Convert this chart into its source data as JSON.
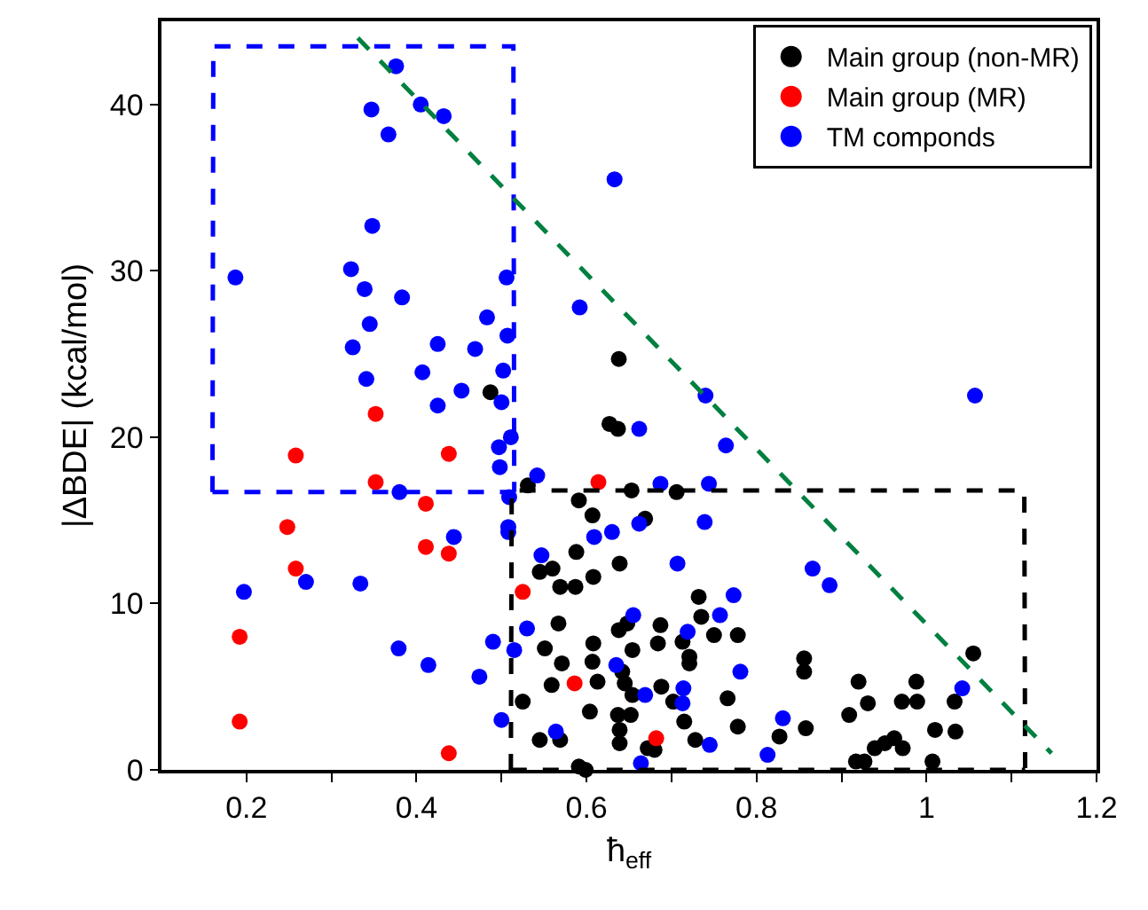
{
  "chart_data": {
    "type": "scatter",
    "xlabel": "ħ$_{eff}$",
    "ylabel": "|ΔBDE| (kcal/mol)",
    "xlim": [
      0.1,
      1.2
    ],
    "ylim": [
      0,
      45
    ],
    "xticks": [
      0.2,
      {
        "value": 0.3,
        "label": null
      },
      0.4,
      {
        "value": 0.5,
        "label": null
      },
      0.6,
      {
        "value": 0.7,
        "label": null
      },
      0.8,
      {
        "value": 0.9,
        "label": null
      },
      1,
      {
        "value": 1.1,
        "label": null
      },
      1.2
    ],
    "yticks": [
      0,
      10,
      20,
      30,
      40
    ],
    "grid": false,
    "legend": "top right",
    "marker": "circle",
    "series": [
      {
        "name": "Main group (non-MR)",
        "color": "#000000",
        "x": [
          0.487,
          0.638,
          0.627,
          0.637,
          0.531,
          0.653,
          0.591,
          0.607,
          0.669,
          0.588,
          0.639,
          0.545,
          0.56,
          0.608,
          0.569,
          0.587,
          0.567,
          0.638,
          0.648,
          0.654,
          0.551,
          0.608,
          0.571,
          0.607,
          0.642,
          0.559,
          0.613,
          0.645,
          0.654,
          0.525,
          0.604,
          0.637,
          0.652,
          0.639,
          0.639,
          0.545,
          0.569,
          0.672,
          0.591,
          0.706,
          0.732,
          0.735,
          0.687,
          0.684,
          0.713,
          0.75,
          0.778,
          0.721,
          0.721,
          0.856,
          0.856,
          1.055,
          0.688,
          0.702,
          0.766,
          0.92,
          0.931,
          0.988,
          0.971,
          0.989,
          1.033,
          0.715,
          0.778,
          0.858,
          0.909,
          1.01,
          1.034,
          0.728,
          0.827,
          0.68,
          0.939,
          0.951,
          0.962,
          0.972,
          0.917,
          1.007,
          0.599,
          0.927
        ],
        "values": [
          22.7,
          24.7,
          20.8,
          20.5,
          17.1,
          16.8,
          16.2,
          15.3,
          15.1,
          13.1,
          12.4,
          11.9,
          12.1,
          11.6,
          11.0,
          11.0,
          8.8,
          8.4,
          8.8,
          7.2,
          7.3,
          7.6,
          6.4,
          6.5,
          5.9,
          5.1,
          5.3,
          5.2,
          4.5,
          4.1,
          3.5,
          3.3,
          3.3,
          2.4,
          1.6,
          1.8,
          1.8,
          1.3,
          0.2,
          16.7,
          10.4,
          9.2,
          8.7,
          7.6,
          7.7,
          8.1,
          8.1,
          6.8,
          6.4,
          6.7,
          5.9,
          7.0,
          5.0,
          4.1,
          4.3,
          5.3,
          4.0,
          5.3,
          4.1,
          4.1,
          4.1,
          2.9,
          2.6,
          2.5,
          3.3,
          2.4,
          2.3,
          1.8,
          2.0,
          1.2,
          1.3,
          1.6,
          1.9,
          1.3,
          0.5,
          0.5,
          0.0,
          0.5
        ]
      },
      {
        "name": "Main group (MR)",
        "color": "#ff0000",
        "x": [
          0.352,
          0.258,
          0.438,
          0.352,
          0.614,
          0.411,
          0.248,
          0.411,
          0.438,
          0.258,
          0.525,
          0.192,
          0.586,
          0.192,
          0.438,
          0.682
        ],
        "values": [
          21.4,
          18.9,
          19.0,
          17.3,
          17.3,
          16.0,
          14.6,
          13.4,
          13.0,
          12.1,
          10.7,
          8.0,
          5.2,
          2.9,
          1.0,
          1.9
        ]
      },
      {
        "name": "TM componds",
        "color": "#0000ff",
        "x": [
          0.376,
          0.347,
          0.405,
          0.432,
          0.367,
          0.633,
          0.348,
          0.187,
          0.323,
          0.339,
          0.383,
          0.506,
          0.592,
          0.483,
          0.345,
          0.507,
          0.325,
          0.425,
          0.469,
          0.502,
          0.341,
          0.407,
          0.453,
          0.425,
          0.5,
          0.511,
          0.497,
          0.498,
          0.542,
          0.38,
          0.509,
          0.662,
          0.508,
          0.508,
          0.444,
          0.609,
          0.63,
          0.662,
          0.547,
          0.197,
          0.27,
          0.334,
          0.53,
          0.655,
          0.379,
          0.49,
          0.515,
          0.414,
          0.474,
          0.635,
          0.669,
          0.5,
          0.564,
          0.664,
          1.057,
          0.74,
          0.764,
          0.687,
          0.744,
          0.739,
          0.707,
          0.866,
          0.886,
          0.773,
          0.757,
          0.719,
          0.781,
          0.714,
          0.713,
          1.042,
          0.831,
          0.745,
          0.813
        ],
        "values": [
          42.3,
          39.7,
          40.0,
          39.3,
          38.2,
          35.5,
          32.7,
          29.6,
          30.1,
          28.9,
          28.4,
          29.6,
          27.8,
          27.2,
          26.8,
          26.1,
          25.4,
          25.6,
          25.3,
          24.0,
          23.5,
          23.9,
          22.8,
          21.9,
          22.1,
          20.0,
          19.4,
          18.2,
          17.7,
          16.7,
          16.4,
          20.5,
          14.6,
          14.3,
          14.0,
          14.0,
          14.3,
          14.8,
          12.9,
          10.7,
          11.3,
          11.2,
          8.5,
          9.3,
          7.3,
          7.7,
          7.2,
          6.3,
          5.6,
          6.3,
          4.5,
          3.0,
          2.3,
          0.4,
          22.5,
          22.5,
          19.5,
          17.2,
          17.2,
          14.9,
          12.4,
          12.1,
          11.1,
          10.5,
          9.3,
          8.3,
          5.9,
          4.9,
          4.0,
          4.9,
          3.1,
          1.5,
          0.9
        ]
      },
      {
        "type": "line",
        "color": "#0000ff",
        "line_style": "dashed",
        "marker": "none",
        "x": [
          0.16,
          0.161,
          0.514,
          0.515
        ],
        "values": [
          16.7,
          43.5,
          43.5,
          16.7
        ]
      },
      {
        "type": "line",
        "color": "#0000ff",
        "line_style": "dashed",
        "marker": "none",
        "x": [
          0.16,
          0.515
        ],
        "values": [
          16.7,
          16.7
        ]
      },
      {
        "type": "line",
        "color": "#000000",
        "line_style": "dashed",
        "marker": "none",
        "x": [
          0.511,
          0.512,
          1.115,
          1.116
        ],
        "values": [
          0.0,
          16.8,
          16.8,
          0.0
        ]
      },
      {
        "type": "line",
        "color": "#000000",
        "line_style": "dashed",
        "marker": "none",
        "x": [
          0.511,
          1.116
        ],
        "values": [
          0.0,
          0.0
        ]
      },
      {
        "type": "line",
        "color": "#008040",
        "line_style": "dashed",
        "marker": "none",
        "x": [
          0.331,
          1.147
        ],
        "values": [
          44.0,
          1.0
        ]
      }
    ]
  }
}
